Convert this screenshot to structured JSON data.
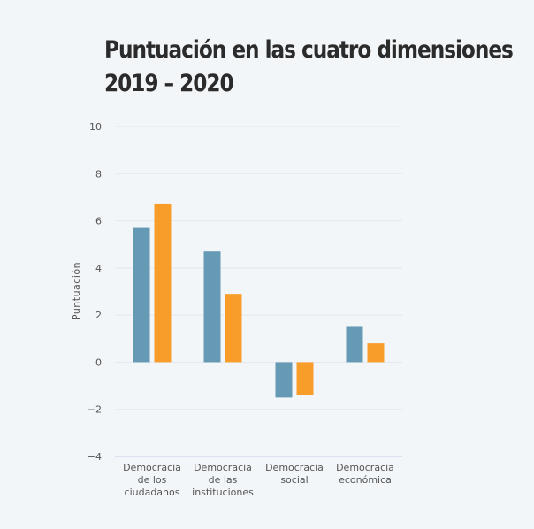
{
  "chart_data": {
    "type": "bar",
    "title": [
      "Puntuación en las cuatro dimensiones",
      "2019 – 2020"
    ],
    "ylabel": "Puntuación",
    "ylim": [
      -4,
      10
    ],
    "yticks": [
      10,
      8,
      6,
      4,
      2,
      0,
      -2,
      -4
    ],
    "categories": [
      [
        "Democracia",
        "de los",
        "ciudadanos"
      ],
      [
        "Democracia",
        "de las",
        "instituciones"
      ],
      [
        "Democracia",
        "social"
      ],
      [
        "Democracia",
        "económica"
      ]
    ],
    "series": [
      {
        "color": "#6699b4",
        "values": [
          5.7,
          4.7,
          -1.5,
          1.5
        ]
      },
      {
        "color": "#f99d2a",
        "values": [
          6.7,
          2.9,
          -1.4,
          0.8
        ]
      }
    ],
    "grid": true,
    "colors": {
      "grid": "#e3e8ee",
      "axis": "#c4c9e8",
      "background": "#f3f6f9"
    }
  }
}
